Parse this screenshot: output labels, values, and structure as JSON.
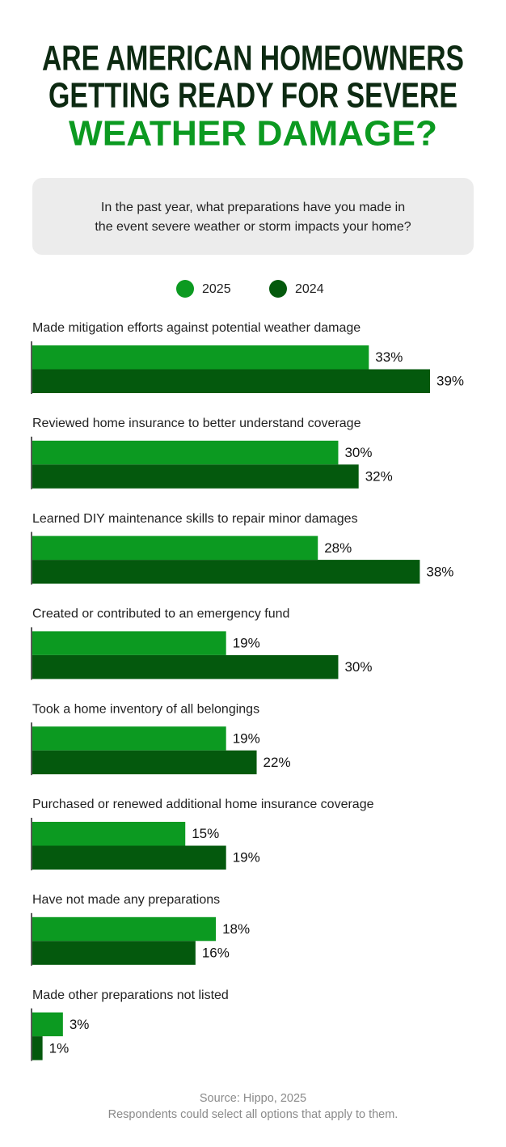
{
  "chart_data": {
    "type": "bar",
    "orientation": "horizontal",
    "title_lines": [
      "ARE AMERICAN HOMEOWNERS",
      "GETTING READY FOR SEVERE",
      "WEATHER DAMAGE?"
    ],
    "title_colors": [
      "#0d2a12",
      "#0d2a12",
      "#0c9a21"
    ],
    "subtitle_lines": [
      "In the past year, what preparations have you made in",
      "the event severe weather or storm impacts your home?"
    ],
    "categories": [
      "Made mitigation efforts against potential weather damage",
      "Reviewed home insurance to better understand coverage",
      "Learned DIY maintenance skills to repair minor damages",
      "Created or contributed to an emergency fund",
      "Took a home inventory of all belongings",
      "Purchased or renewed additional home insurance coverage",
      "Have not made any preparations",
      "Made other preparations not listed"
    ],
    "series": [
      {
        "name": "2025",
        "color": "#0c9a21",
        "values": [
          33,
          30,
          28,
          19,
          19,
          15,
          18,
          3
        ],
        "value_labels": [
          "33%",
          "30%",
          "28%",
          "19%",
          "19%",
          "15%",
          "18%",
          "3%"
        ]
      },
      {
        "name": "2024",
        "color": "#04590d",
        "values": [
          39,
          32,
          38,
          30,
          22,
          19,
          16,
          1
        ],
        "value_labels": [
          "39%",
          "32%",
          "38%",
          "30%",
          "22%",
          "19%",
          "16%",
          "1%"
        ]
      }
    ],
    "footnotes": [
      "Source: Hippo, 2025",
      "Respondents could select all options that apply to them."
    ]
  }
}
